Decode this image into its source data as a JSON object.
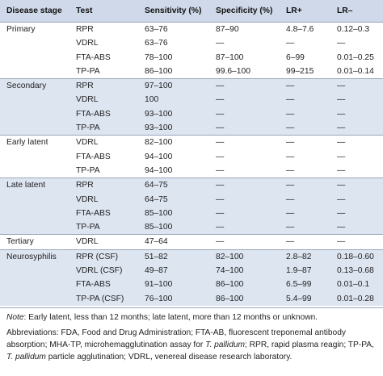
{
  "headers": {
    "disease_stage": "Disease stage",
    "test": "Test",
    "sensitivity": "Sensitivity (%)",
    "specificity": "Specificity (%)",
    "lr_pos": "LR+",
    "lr_neg": "LR–"
  },
  "groups": [
    {
      "stage": "Primary",
      "rows": [
        {
          "test": "RPR",
          "sensitivity": "63–76",
          "specificity": "87–90",
          "lr_pos": "4.8–7.6",
          "lr_neg": "0.12–0.3"
        },
        {
          "test": "VDRL",
          "sensitivity": "63–76",
          "specificity": "—",
          "lr_pos": "—",
          "lr_neg": "—"
        },
        {
          "test": "FTA-ABS",
          "sensitivity": "78–100",
          "specificity": "87–100",
          "lr_pos": "6–99",
          "lr_neg": "0.01–0.25"
        },
        {
          "test": "TP-PA",
          "sensitivity": "86–100",
          "specificity": "99.6–100",
          "lr_pos": "99–215",
          "lr_neg": "0.01–0.14"
        }
      ]
    },
    {
      "stage": "Secondary",
      "rows": [
        {
          "test": "RPR",
          "sensitivity": "97–100",
          "specificity": "—",
          "lr_pos": "—",
          "lr_neg": "—"
        },
        {
          "test": "VDRL",
          "sensitivity": "100",
          "specificity": "—",
          "lr_pos": "—",
          "lr_neg": "—"
        },
        {
          "test": "FTA-ABS",
          "sensitivity": "93–100",
          "specificity": "—",
          "lr_pos": "—",
          "lr_neg": "—"
        },
        {
          "test": "TP-PA",
          "sensitivity": "93–100",
          "specificity": "—",
          "lr_pos": "—",
          "lr_neg": "—"
        }
      ]
    },
    {
      "stage": "Early latent",
      "rows": [
        {
          "test": "VDRL",
          "sensitivity": "82–100",
          "specificity": "—",
          "lr_pos": "—",
          "lr_neg": "—"
        },
        {
          "test": "FTA-ABS",
          "sensitivity": "94–100",
          "specificity": "—",
          "lr_pos": "—",
          "lr_neg": "—"
        },
        {
          "test": "TP-PA",
          "sensitivity": "94–100",
          "specificity": "—",
          "lr_pos": "—",
          "lr_neg": "—"
        }
      ]
    },
    {
      "stage": "Late latent",
      "rows": [
        {
          "test": "RPR",
          "sensitivity": "64–75",
          "specificity": "—",
          "lr_pos": "—",
          "lr_neg": "—"
        },
        {
          "test": "VDRL",
          "sensitivity": "64–75",
          "specificity": "—",
          "lr_pos": "—",
          "lr_neg": "—"
        },
        {
          "test": "FTA-ABS",
          "sensitivity": "85–100",
          "specificity": "—",
          "lr_pos": "—",
          "lr_neg": "—"
        },
        {
          "test": "TP-PA",
          "sensitivity": "85–100",
          "specificity": "—",
          "lr_pos": "—",
          "lr_neg": "—"
        }
      ]
    },
    {
      "stage": "Tertiary",
      "rows": [
        {
          "test": "VDRL",
          "sensitivity": "47–64",
          "specificity": "—",
          "lr_pos": "—",
          "lr_neg": "—"
        }
      ]
    },
    {
      "stage": "Neurosyphilis",
      "rows": [
        {
          "test": "RPR (CSF)",
          "sensitivity": "51–82",
          "specificity": "82–100",
          "lr_pos": "2.8–82",
          "lr_neg": "0.18–0.60"
        },
        {
          "test": "VDRL (CSF)",
          "sensitivity": "49–87",
          "specificity": "74–100",
          "lr_pos": "1.9–87",
          "lr_neg": "0.13–0.68"
        },
        {
          "test": "FTA-ABS",
          "sensitivity": "91–100",
          "specificity": "86–100",
          "lr_pos": "6.5–99",
          "lr_neg": "0.01–0.1"
        },
        {
          "test": "TP-PA (CSF)",
          "sensitivity": "76–100",
          "specificity": "86–100",
          "lr_pos": "5.4–99",
          "lr_neg": "0.01–0.28"
        }
      ]
    }
  ],
  "note": {
    "label": "Note",
    "text": ": Early latent, less than 12 months; late latent, more than 12 months or unknown."
  },
  "abbreviations": {
    "part1": "Abbreviations: FDA, Food and Drug Administration; FTA-AB, fluorescent treponemal antibody absorption; MHA-TP, microhemagglutination assay for ",
    "organism1": "T. pallidum",
    "part2": "; RPR, rapid plasma reagin; TP-PA, ",
    "organism2": "T. pallidum",
    "part3": " particle agglutination; VDRL, venereal disease research laboratory."
  },
  "colors": {
    "header_bg": "#cfd9e9",
    "shaded_group_bg": "#dde5f1",
    "plain_group_bg": "#ffffff",
    "rule": "#9aa6ba"
  }
}
